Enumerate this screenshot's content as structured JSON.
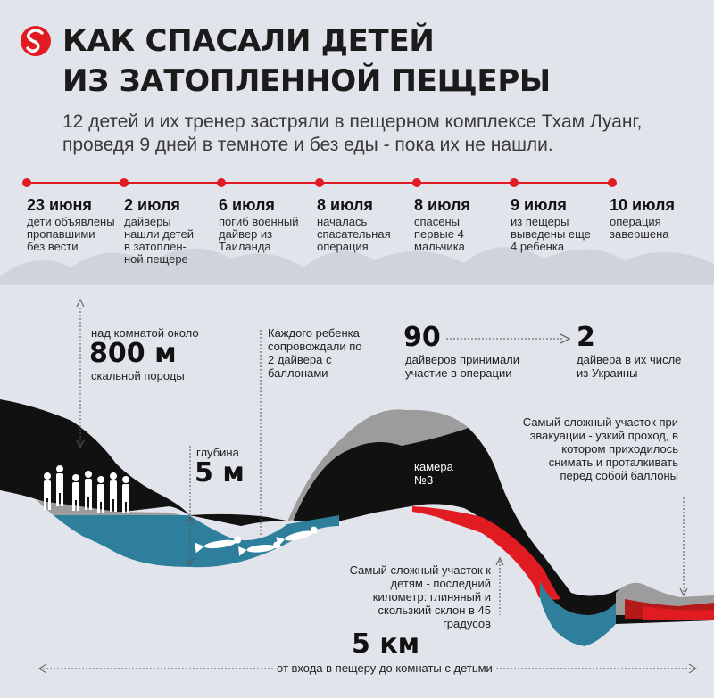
{
  "header": {
    "title_line1": "КАК СПАСАЛИ ДЕТЕЙ",
    "title_line2": "ИЗ ЗАТОПЛЕННОЙ ПЕЩЕРЫ",
    "subtitle_line1": "12 детей и их тренер застряли в пещерном комплексе Тхам Луанг,",
    "subtitle_line2": "проведя 9 дней в темноте и без еды - пока их не нашли."
  },
  "timeline": [
    {
      "date": "23 июня",
      "desc": "дети объявлены пропавшими без вести"
    },
    {
      "date": "2 июля",
      "desc": "дайверы нашли детей в затоплен-ной пещере"
    },
    {
      "date": "6 июля",
      "desc": "погиб военный дайвер из Таиланда"
    },
    {
      "date": "8 июля",
      "desc": "началась спасательная операция"
    },
    {
      "date": "8 июля",
      "desc": "спасены первые 4 мальчика"
    },
    {
      "date": "9 июля",
      "desc": "из пещеры выведены еще 4 ребенка"
    },
    {
      "date": "10 июля",
      "desc": "операция завершена"
    }
  ],
  "facts": {
    "rock_prefix": "над комнатой около",
    "rock_value": "800 м",
    "rock_suffix": "скальной породы",
    "depth_label": "глубина",
    "depth_value": "5 м",
    "escort": "Каждого ребенка сопровождали по 2 дайвера с баллонами",
    "divers_value": "90",
    "divers_label": "дайверов принимали участие в операции",
    "ukraine_value": "2",
    "ukraine_label": "дайвера в их числе из Украины",
    "chamber": "камера №3",
    "hardest_evac": "Самый сложный участок при эвакуации - узкий проход, в котором приходилось снимать и проталкивать перед собой баллоны",
    "hardest_kids": "Самый сложный участок к детям - последний километр: глиняный и скользкий склон в 45 градусов",
    "distance_value": "5 км",
    "distance_label": "от входа в пещеру до комнаты с детьми"
  },
  "colors": {
    "accent_red": "#e01b22",
    "water": "#2e7f9c",
    "rock": "#111111",
    "mud": "#9c9c9c",
    "background": "#e1e4ea"
  },
  "icons": [
    "logo-icon",
    "arrow-icon"
  ]
}
